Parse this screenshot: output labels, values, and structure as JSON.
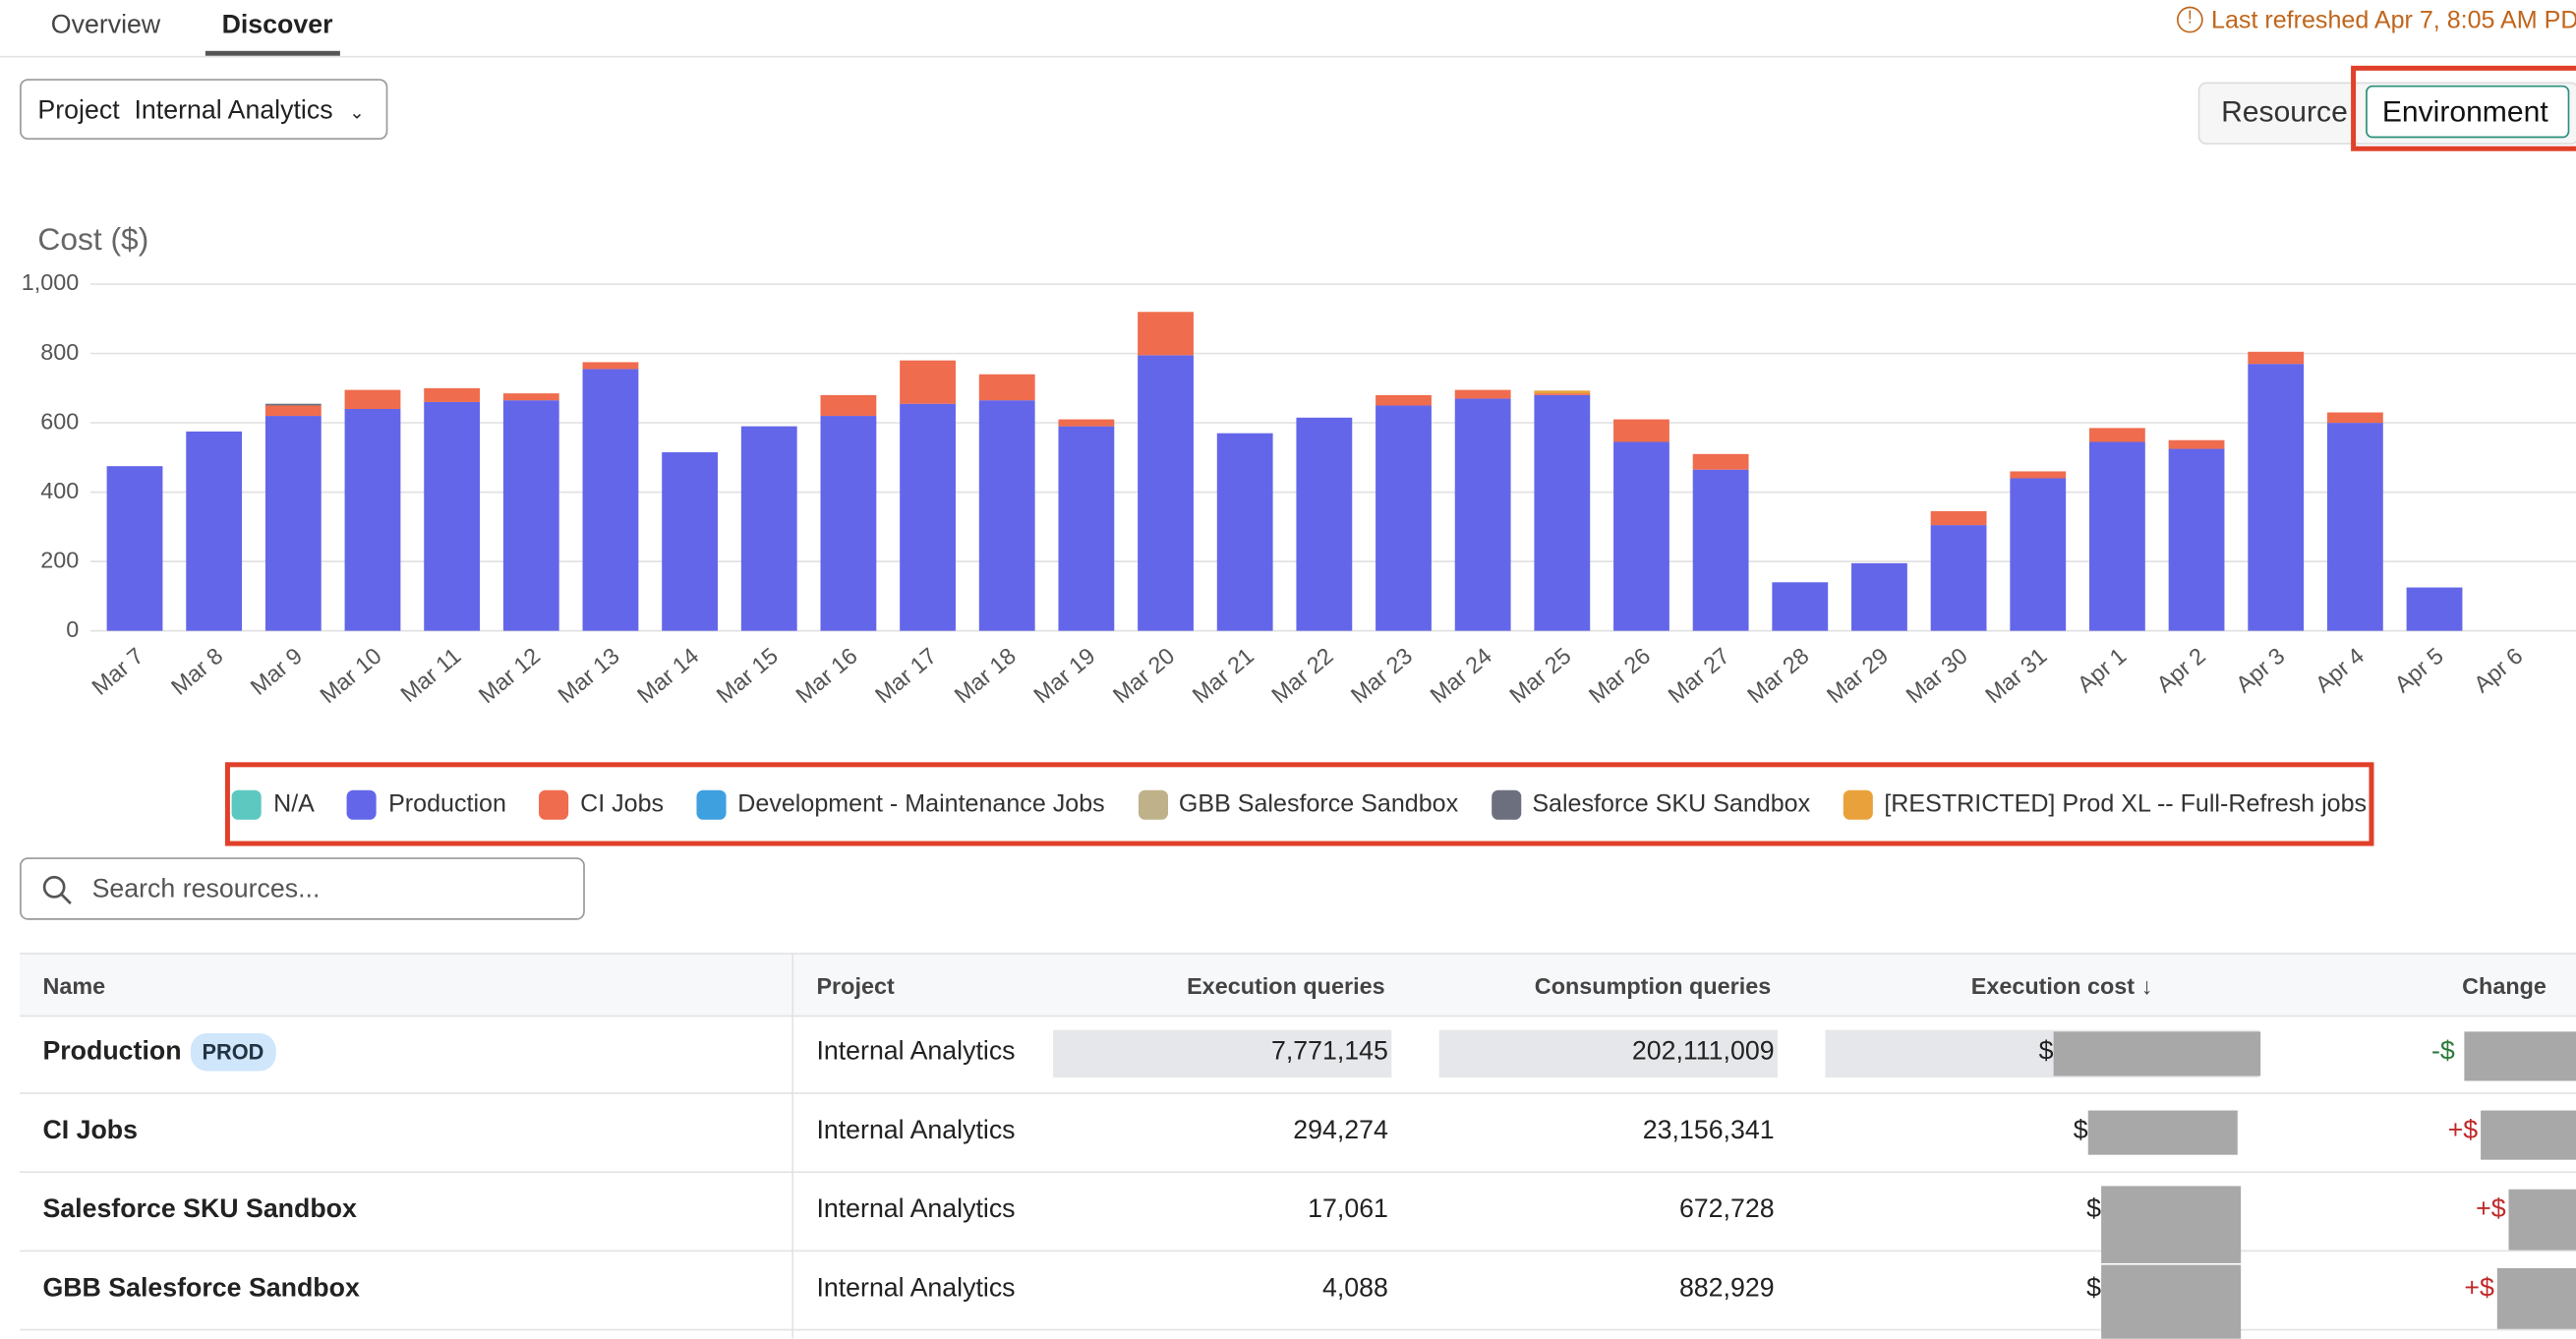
{
  "tabs": [
    "Overview",
    "Discover"
  ],
  "status": "Last refreshed Apr 7, 8:05 AM PD",
  "filter": {
    "label": "Project",
    "value": "Internal Analytics"
  },
  "view_toggle": [
    "Resource",
    "Environment"
  ],
  "chart_data": {
    "type": "bar",
    "stacked": true,
    "y_title": "Cost ($)",
    "categories": [
      "Mar 7",
      "Mar 8",
      "Mar 9",
      "Mar 10",
      "Mar 11",
      "Mar 12",
      "Mar 13",
      "Mar 14",
      "Mar 15",
      "Mar 16",
      "Mar 17",
      "Mar 18",
      "Mar 19",
      "Mar 20",
      "Mar 21",
      "Mar 22",
      "Mar 23",
      "Mar 24",
      "Mar 25",
      "Mar 26",
      "Mar 27",
      "Mar 28",
      "Mar 29",
      "Mar 30",
      "Mar 31",
      "Apr 1",
      "Apr 2",
      "Apr 3",
      "Apr 4",
      "Apr 5",
      "Apr 6"
    ],
    "series": [
      {
        "name": "N/A",
        "color": "#5cc8c0",
        "values": [
          0,
          0,
          0,
          0,
          0,
          0,
          0,
          0,
          0,
          0,
          0,
          0,
          0,
          0,
          0,
          0,
          0,
          0,
          0,
          0,
          0,
          0,
          0,
          0,
          0,
          0,
          0,
          0,
          0,
          0,
          0
        ]
      },
      {
        "name": "Production",
        "color": "#6466e9",
        "values": [
          475,
          575,
          620,
          640,
          660,
          665,
          755,
          515,
          590,
          620,
          655,
          665,
          590,
          795,
          570,
          615,
          650,
          670,
          680,
          545,
          465,
          140,
          195,
          305,
          440,
          545,
          525,
          770,
          600,
          125,
          0
        ]
      },
      {
        "name": "CI Jobs",
        "color": "#ef6c4e",
        "values": [
          0,
          0,
          30,
          55,
          40,
          20,
          20,
          0,
          0,
          60,
          125,
          75,
          20,
          125,
          0,
          0,
          30,
          25,
          5,
          65,
          45,
          0,
          0,
          40,
          20,
          40,
          25,
          35,
          30,
          0,
          0
        ]
      },
      {
        "name": "Development - Maintenance Jobs",
        "color": "#3fa0e0",
        "values": [
          0,
          0,
          0,
          0,
          0,
          0,
          0,
          0,
          0,
          0,
          0,
          0,
          0,
          0,
          0,
          0,
          0,
          0,
          0,
          0,
          0,
          0,
          0,
          0,
          0,
          0,
          0,
          0,
          0,
          0,
          0
        ]
      },
      {
        "name": "GBB Salesforce Sandbox",
        "color": "#bfb28a",
        "values": [
          0,
          0,
          0,
          0,
          0,
          0,
          0,
          0,
          0,
          0,
          0,
          0,
          0,
          0,
          0,
          0,
          0,
          0,
          0,
          0,
          0,
          0,
          0,
          0,
          0,
          0,
          0,
          0,
          0,
          0,
          0
        ]
      },
      {
        "name": "Salesforce SKU Sandbox",
        "color": "#6b6f7e",
        "values": [
          0,
          0,
          5,
          0,
          0,
          0,
          0,
          0,
          0,
          0,
          0,
          0,
          0,
          0,
          0,
          0,
          0,
          0,
          0,
          0,
          0,
          0,
          0,
          0,
          0,
          0,
          0,
          0,
          0,
          0,
          0
        ]
      },
      {
        "name": "[RESTRICTED] Prod XL -- Full-Refresh jobs",
        "color": "#e9a23b",
        "values": [
          0,
          0,
          0,
          0,
          0,
          0,
          0,
          0,
          0,
          0,
          0,
          0,
          0,
          0,
          0,
          0,
          0,
          0,
          8,
          0,
          0,
          0,
          0,
          0,
          0,
          0,
          0,
          0,
          0,
          0,
          0
        ]
      }
    ],
    "ylim": [
      0,
      1000
    ],
    "yticks": [
      0,
      200,
      400,
      600,
      800,
      {
        "value": 1000,
        "label": "1,000"
      }
    ],
    "grid": true
  },
  "search_placeholder": "Search resources...",
  "table": {
    "columns": [
      "Name",
      "Project",
      "Execution queries",
      "Consumption queries",
      "Execution cost ↓",
      "Change"
    ],
    "rows": [
      {
        "name": "Production",
        "badge": "PROD",
        "project": "Internal Analytics",
        "execution_queries": "7,771,145",
        "consumption_queries": "202,111,009",
        "execution_cost": "$",
        "change": "-$"
      },
      {
        "name": "CI Jobs",
        "project": "Internal Analytics",
        "execution_queries": "294,274",
        "consumption_queries": "23,156,341",
        "execution_cost": "$",
        "change": "+$"
      },
      {
        "name": "Salesforce SKU Sandbox",
        "project": "Internal Analytics",
        "execution_queries": "17,061",
        "consumption_queries": "672,728",
        "execution_cost": "$",
        "change": "+$"
      },
      {
        "name": "GBB Salesforce Sandbox",
        "project": "Internal Analytics",
        "execution_queries": "4,088",
        "consumption_queries": "882,929",
        "execution_cost": "$",
        "change": "+$"
      }
    ]
  }
}
